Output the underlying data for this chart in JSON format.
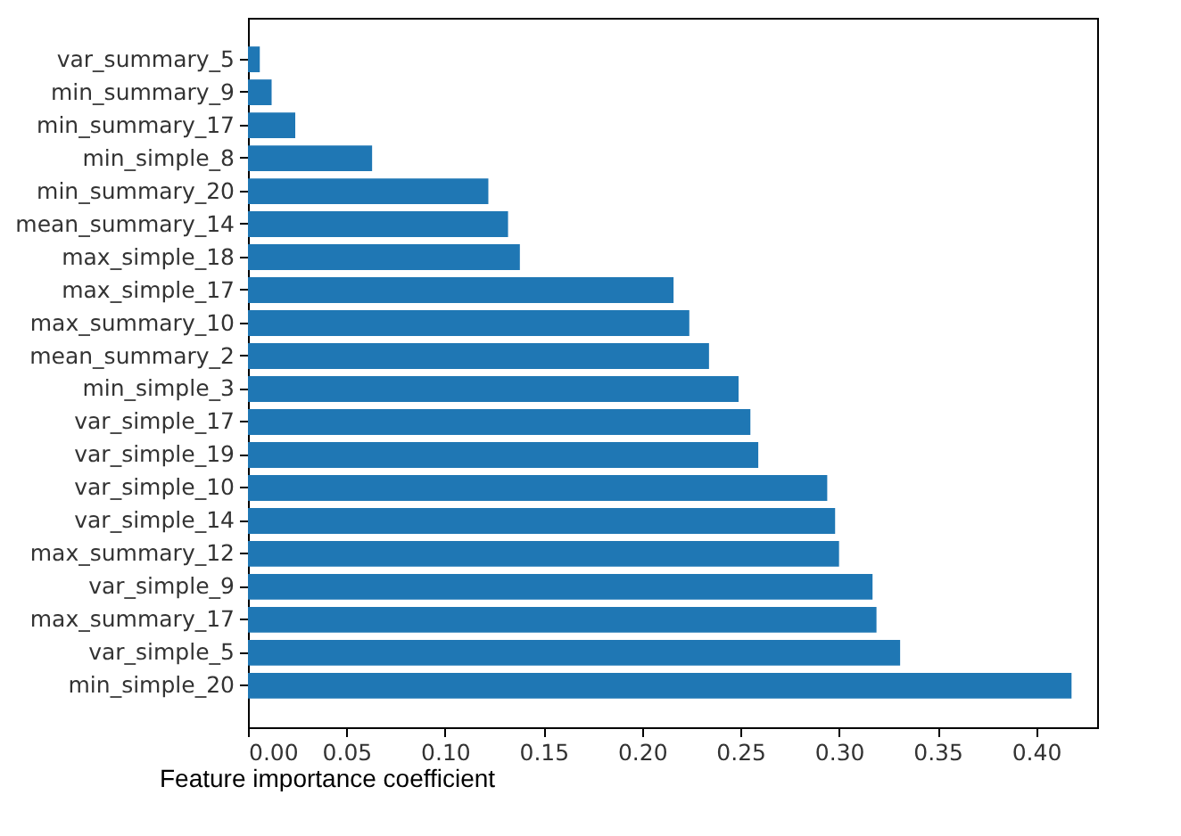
{
  "chart_data": {
    "type": "bar",
    "orientation": "horizontal",
    "xlabel": "Feature importance coefficient",
    "categories": [
      "var_summary_5",
      "min_summary_9",
      "min_summary_17",
      "min_simple_8",
      "min_summary_20",
      "mean_summary_14",
      "max_simple_18",
      "max_simple_17",
      "max_summary_10",
      "mean_summary_2",
      "min_simple_3",
      "var_simple_17",
      "var_simple_19",
      "var_simple_10",
      "var_simple_14",
      "max_summary_12",
      "var_simple_9",
      "max_summary_17",
      "var_simple_5",
      "min_simple_20"
    ],
    "values": [
      0.006,
      0.012,
      0.024,
      0.063,
      0.122,
      0.132,
      0.138,
      0.216,
      0.224,
      0.234,
      0.249,
      0.255,
      0.259,
      0.294,
      0.298,
      0.3,
      0.317,
      0.319,
      0.331,
      0.418
    ],
    "color": "#1f77b4",
    "xlim": [
      0,
      0.431
    ],
    "xticks": [
      {
        "value": 0,
        "label": "0.00"
      },
      {
        "value": 0.05,
        "label": "0.05"
      },
      {
        "value": 0.1,
        "label": "0.10"
      },
      {
        "value": 0.15,
        "label": "0.15"
      },
      {
        "value": 0.2,
        "label": "0.20"
      },
      {
        "value": 0.25,
        "label": "0.25"
      },
      {
        "value": 0.3,
        "label": "0.30"
      },
      {
        "value": 0.35,
        "label": "0.35"
      },
      {
        "value": 0.4,
        "label": "0.40"
      }
    ],
    "grid": false
  }
}
